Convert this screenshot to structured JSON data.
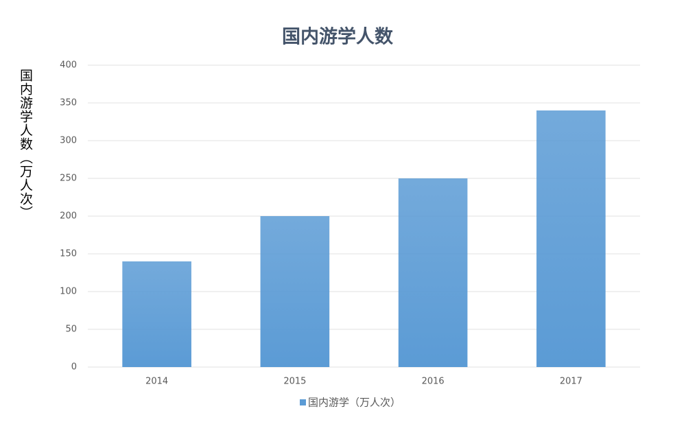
{
  "chart_data": {
    "type": "bar",
    "title": "国内游学人数",
    "y_label": "国内游学人数（万人次）",
    "categories": [
      "2014",
      "2015",
      "2016",
      "2017"
    ],
    "series": [
      {
        "name": "国内游学（万人次）",
        "color": "#5b9bd5",
        "values": [
          140,
          200,
          250,
          340
        ]
      }
    ],
    "ylim": [
      0,
      400
    ],
    "yticks": [
      0,
      50,
      100,
      150,
      200,
      250,
      300,
      350,
      400
    ],
    "grid": true,
    "legend": "bottom"
  }
}
